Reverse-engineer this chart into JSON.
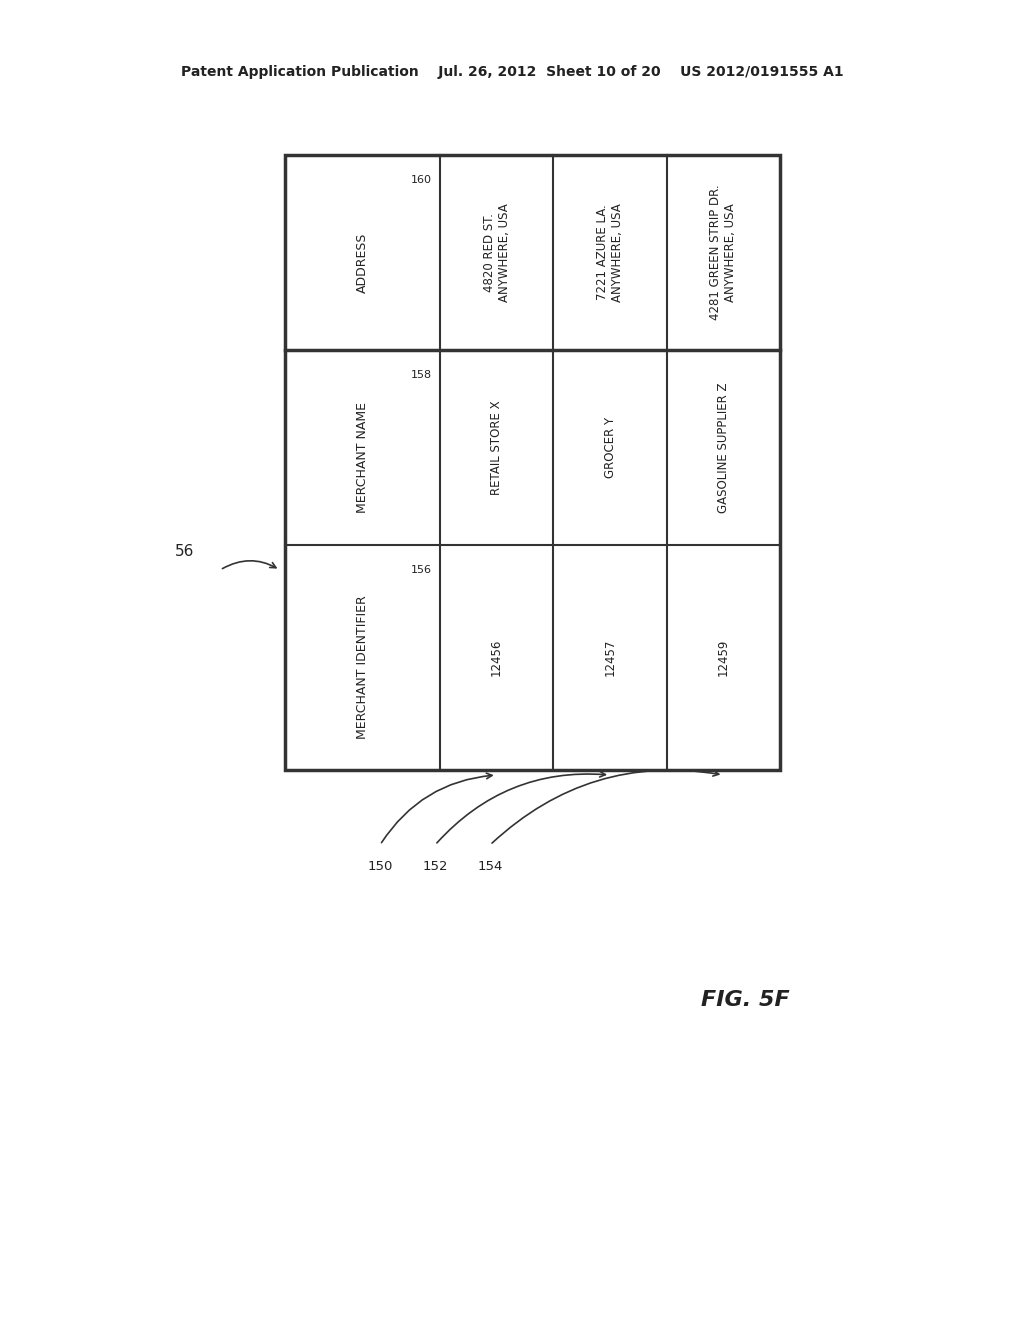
{
  "header_line": "Patent Application Publication    Jul. 26, 2012  Sheet 10 of 20    US 2012/0191555 A1",
  "figure_label": "FIG. 5F",
  "table_ref": "56",
  "row_headers": [
    "ADDRESS",
    "MERCHANT NAME",
    "MERCHANT IDENTIFIER"
  ],
  "row_ref_labels": [
    "160",
    "158",
    "156"
  ],
  "col_labels": [
    "150",
    "152",
    "154"
  ],
  "data": [
    [
      "4820 RED ST.\nANYWHERE, USA",
      "7221 AZURE LA.\nANYWHERE, USA",
      "4281 GREEN STRIP DR.\nANYWHERE, USA"
    ],
    [
      "RETAIL STORE X",
      "GROCER Y",
      "GASOLINE SUPPLIER Z"
    ],
    [
      "12456",
      "12457",
      "12459"
    ]
  ],
  "bg_color": "#ffffff",
  "line_color": "#333333",
  "text_color": "#222222"
}
